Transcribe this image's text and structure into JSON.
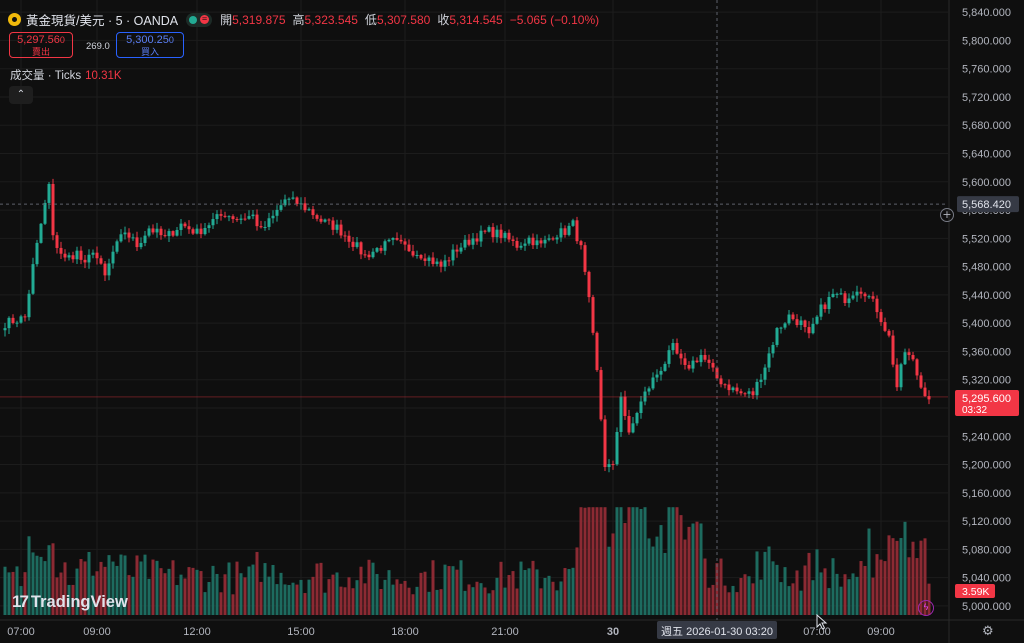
{
  "header": {
    "symbol": "黃金現貨/美元 · 5 · OANDA",
    "ohlc": [
      {
        "label": "開",
        "value": "5,319.875"
      },
      {
        "label": "高",
        "value": "5,323.545"
      },
      {
        "label": "低",
        "value": "5,307.580"
      },
      {
        "label": "收",
        "value": "5,314.545"
      }
    ],
    "change": "−5.065 (−0.10%)",
    "status_equal_glyph": "="
  },
  "trade": {
    "sell_price": "5,297.56",
    "sell_price_small": "0",
    "sell_label": "賣出",
    "spread": "269.0",
    "buy_price": "5,300.25",
    "buy_price_small": "0",
    "buy_label": "買入"
  },
  "volume_legend": {
    "label": "成交量 · Ticks",
    "value": "10.31K"
  },
  "collapse_glyph": "⌃",
  "branding": {
    "logo_mark": "17",
    "logo_text": "TradingView"
  },
  "colors": {
    "up": "#22ab94",
    "down": "#f23645",
    "up_volume": "#1d6b5f",
    "down_volume": "#8c2a33",
    "background": "#0f0f0f",
    "grid": "#1c1c1c",
    "crosshair": "#5d606b"
  },
  "icons": [
    "gold-symbol-icon",
    "collapse-chevron-icon",
    "lightning-icon",
    "settings-gear-icon",
    "crosshair-add-icon",
    "mouse-cursor-icon"
  ],
  "chart_data": {
    "type": "candlestick",
    "title": "黃金現貨/美元 · 5 · OANDA",
    "ylim": [
      4990,
      5860
    ],
    "y_ticks": [
      "5,840.000",
      "5,800.000",
      "5,760.000",
      "5,720.000",
      "5,680.000",
      "5,640.000",
      "5,600.000",
      "5,560.000",
      "5,520.000",
      "5,480.000",
      "5,440.000",
      "5,400.000",
      "5,360.000",
      "5,320.000",
      "5,280.000",
      "5,240.000",
      "5,200.000",
      "5,160.000",
      "5,120.000",
      "5,080.000",
      "5,040.000",
      "5,000.000"
    ],
    "y_tick_values": [
      5840,
      5800,
      5760,
      5720,
      5680,
      5640,
      5600,
      5560,
      5520,
      5480,
      5440,
      5400,
      5360,
      5320,
      5280,
      5240,
      5200,
      5160,
      5120,
      5080,
      5040,
      5000
    ],
    "x_labels": [
      "07:00",
      "09:00",
      "12:00",
      "15:00",
      "18:00",
      "21:00",
      "30",
      "07:00",
      "09:00"
    ],
    "x_label_bars": [
      4,
      23,
      48,
      74,
      100,
      125,
      152,
      203,
      219
    ],
    "current_price": "5,295.600",
    "current_price_value": 5295.6,
    "countdown": "03:32",
    "crosshair_price": "5,568.420",
    "crosshair_price_value": 5568.42,
    "crosshair_time": "週五 2026-01-30   03:20",
    "crosshair_bar": 178,
    "volume_last": "3.59K",
    "volume_max": 5700,
    "price_path": [
      [
        0,
        5400
      ],
      [
        5,
        5408
      ],
      [
        7,
        5480
      ],
      [
        9,
        5540
      ],
      [
        11,
        5595
      ],
      [
        12,
        5520
      ],
      [
        15,
        5490
      ],
      [
        18,
        5500
      ],
      [
        20,
        5480
      ],
      [
        22,
        5505
      ],
      [
        25,
        5465
      ],
      [
        27,
        5500
      ],
      [
        30,
        5530
      ],
      [
        33,
        5510
      ],
      [
        36,
        5535
      ],
      [
        40,
        5520
      ],
      [
        44,
        5540
      ],
      [
        48,
        5528
      ],
      [
        52,
        5545
      ],
      [
        55,
        5555
      ],
      [
        58,
        5548
      ],
      [
        62,
        5552
      ],
      [
        64,
        5530
      ],
      [
        67,
        5550
      ],
      [
        70,
        5575
      ],
      [
        73,
        5570
      ],
      [
        76,
        5560
      ],
      [
        79,
        5545
      ],
      [
        83,
        5535
      ],
      [
        86,
        5520
      ],
      [
        90,
        5495
      ],
      [
        93,
        5505
      ],
      [
        97,
        5515
      ],
      [
        101,
        5505
      ],
      [
        105,
        5495
      ],
      [
        109,
        5480
      ],
      [
        113,
        5505
      ],
      [
        117,
        5520
      ],
      [
        121,
        5530
      ],
      [
        124,
        5525
      ],
      [
        128,
        5510
      ],
      [
        131,
        5520
      ],
      [
        134,
        5510
      ],
      [
        137,
        5525
      ],
      [
        140,
        5530
      ],
      [
        142,
        5540
      ],
      [
        144,
        5505
      ],
      [
        146,
        5430
      ],
      [
        148,
        5330
      ],
      [
        150,
        5200
      ],
      [
        152,
        5195
      ],
      [
        154,
        5300
      ],
      [
        156,
        5240
      ],
      [
        158,
        5275
      ],
      [
        160,
        5300
      ],
      [
        162,
        5320
      ],
      [
        165,
        5345
      ],
      [
        167,
        5365
      ],
      [
        170,
        5335
      ],
      [
        172,
        5345
      ],
      [
        174,
        5355
      ],
      [
        176,
        5340
      ],
      [
        178,
        5322
      ],
      [
        181,
        5310
      ],
      [
        184,
        5300
      ],
      [
        187,
        5300
      ],
      [
        190,
        5340
      ],
      [
        193,
        5390
      ],
      [
        196,
        5410
      ],
      [
        199,
        5400
      ],
      [
        201,
        5380
      ],
      [
        204,
        5420
      ],
      [
        207,
        5440
      ],
      [
        210,
        5435
      ],
      [
        213,
        5450
      ],
      [
        215,
        5445
      ],
      [
        218,
        5420
      ],
      [
        221,
        5380
      ],
      [
        223,
        5310
      ],
      [
        225,
        5360
      ],
      [
        227,
        5345
      ],
      [
        229,
        5310
      ],
      [
        231,
        5296
      ]
    ]
  }
}
